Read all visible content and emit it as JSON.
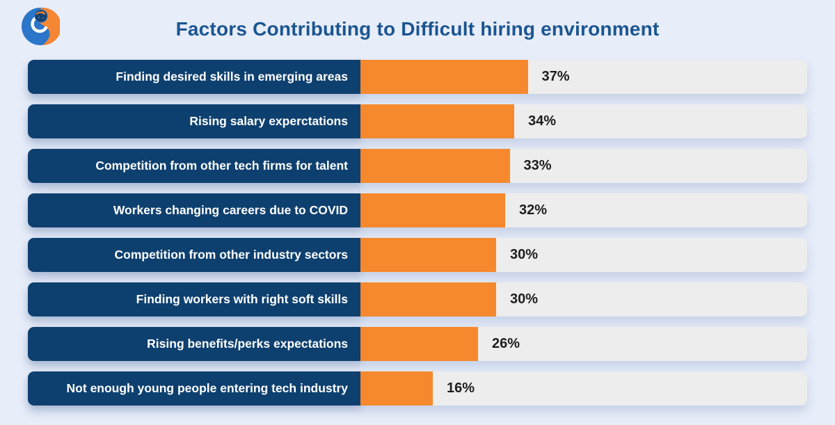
{
  "title": "Factors Contributing to Difficult hiring environment",
  "logo": {
    "icon": "company-globe-logo"
  },
  "colors": {
    "page_background": "#e7edf9",
    "label_background": "#0e406f",
    "bar_fill": "#f6892d",
    "track_fill": "#ededed",
    "title_text": "#1b5591",
    "label_text": "#ffffff",
    "value_text": "#1d1d1d",
    "logo_blue": "#2b76c9",
    "logo_orange": "#f58634",
    "logo_globe": "#14ekeep"
  },
  "chart_data": {
    "type": "bar",
    "orientation": "horizontal",
    "title": "Factors Contributing to Difficult hiring environment",
    "categories": [
      "Finding desired skills in emerging areas",
      "Rising salary experctations",
      "Competition from other tech firms for talent",
      "Workers changing careers due to COVID",
      "Competition from other industry sectors",
      "Finding workers with right soft skills",
      "Rising benefits/perks expectations",
      "Not enough young people entering tech industry"
    ],
    "values": [
      37,
      34,
      33,
      32,
      30,
      30,
      26,
      16
    ],
    "value_suffix": "%",
    "xlabel": "",
    "ylabel": "",
    "xlim": [
      0,
      100
    ],
    "grid": false,
    "legend": false,
    "value_labels_position": "right-of-bar"
  }
}
